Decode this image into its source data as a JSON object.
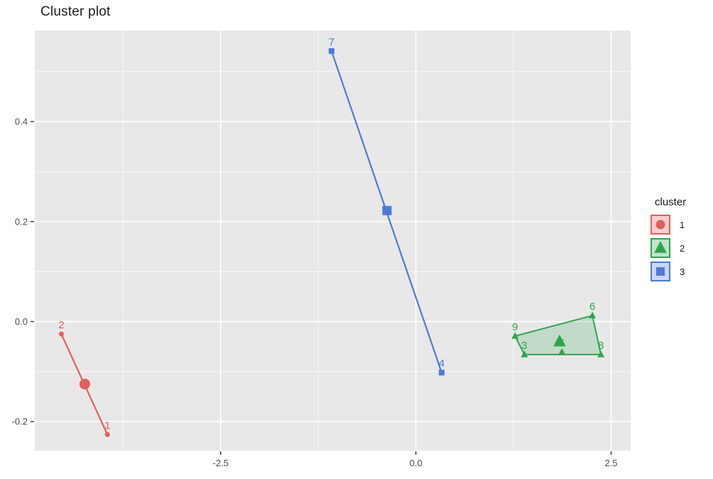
{
  "title": "Cluster plot",
  "panel": {
    "background": "#E8E8E8",
    "grid_color": "#FFFFFF",
    "axis_text_color": "#4d4d4d"
  },
  "legend": {
    "title": "cluster",
    "position": "right",
    "items": [
      {
        "label": "1",
        "shape": "circle",
        "color": "#E15F5C"
      },
      {
        "label": "2",
        "shape": "triangle",
        "color": "#2EA64D"
      },
      {
        "label": "3",
        "shape": "square",
        "color": "#4E7AD8"
      }
    ]
  },
  "chart_data": {
    "type": "scatter",
    "title": "Cluster plot",
    "xlabel": "",
    "ylabel": "",
    "xlim": [
      -4.88,
      2.75
    ],
    "ylim": [
      -0.258,
      0.582
    ],
    "x_ticks": [
      -2.5,
      0.0,
      2.5
    ],
    "x_tick_labels": [
      "-2.5",
      "0.0",
      "2.5"
    ],
    "y_ticks": [
      -0.2,
      0.0,
      0.2,
      0.4
    ],
    "y_tick_labels": [
      "-0.2",
      "0.0",
      "0.2",
      "0.4"
    ],
    "x_minor": [
      -3.75,
      -1.25,
      1.25
    ],
    "y_minor": [
      -0.1,
      0.1,
      0.3,
      0.5
    ],
    "grid": true,
    "legend_position": "right",
    "clusters": [
      {
        "name": "1",
        "shape": "circle",
        "color": "#E15F5C",
        "points": [
          {
            "label": "2",
            "x": -4.54,
            "y": -0.025
          },
          {
            "label": "1",
            "x": -3.95,
            "y": -0.226
          }
        ],
        "centroid": {
          "x": -4.24,
          "y": -0.125
        },
        "hull": [
          [
            -4.54,
            -0.025
          ],
          [
            -3.95,
            -0.226
          ]
        ]
      },
      {
        "name": "2",
        "shape": "triangle",
        "color": "#2EA64D",
        "points": [
          {
            "label": "9",
            "x": 1.27,
            "y": -0.029
          },
          {
            "label": "3",
            "x": 1.39,
            "y": -0.066
          },
          {
            "label": "5",
            "x": 1.87,
            "y": -0.061
          },
          {
            "label": "6",
            "x": 2.26,
            "y": 0.012
          },
          {
            "label": "8",
            "x": 2.37,
            "y": -0.066
          }
        ],
        "centroid": {
          "x": 1.84,
          "y": -0.04
        },
        "hull": [
          [
            1.27,
            -0.029
          ],
          [
            2.26,
            0.012
          ],
          [
            2.37,
            -0.066
          ],
          [
            1.39,
            -0.066
          ]
        ]
      },
      {
        "name": "3",
        "shape": "square",
        "color": "#4E7AD8",
        "points": [
          {
            "label": "7",
            "x": -1.08,
            "y": 0.541
          },
          {
            "label": "4",
            "x": 0.33,
            "y": -0.102
          }
        ],
        "centroid": {
          "x": -0.37,
          "y": 0.222
        },
        "hull": [
          [
            -1.08,
            0.541
          ],
          [
            0.33,
            -0.102
          ]
        ]
      }
    ]
  }
}
